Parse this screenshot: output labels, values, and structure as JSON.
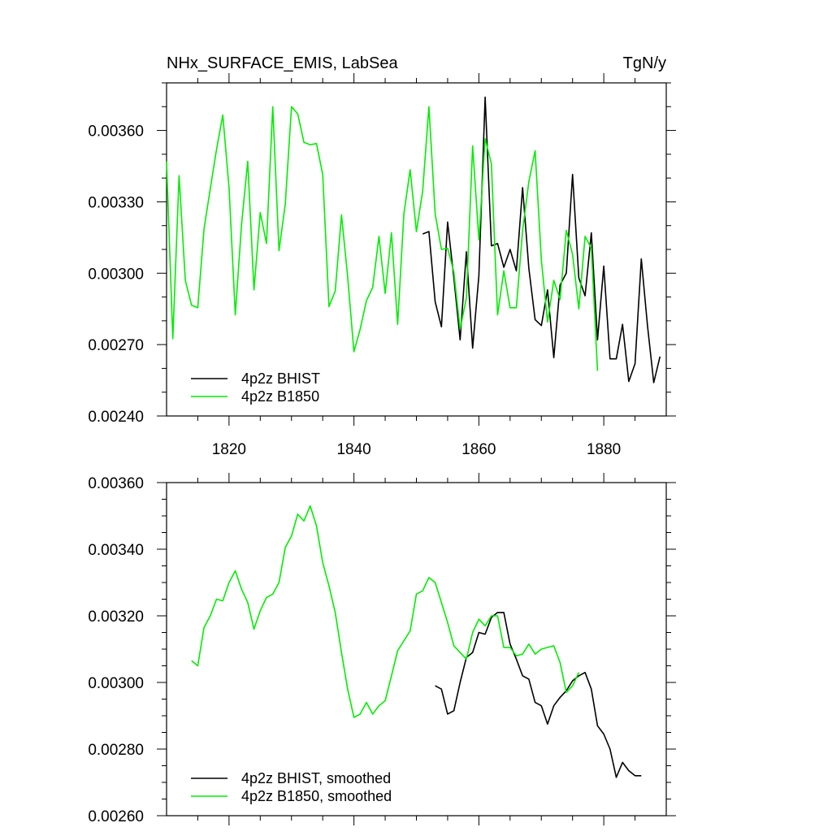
{
  "chart_data": [
    {
      "type": "line",
      "title": "NHx_SURFACE_EMIS, LabSea",
      "units": "TgN/y",
      "xlim": [
        1810,
        1890
      ],
      "ylim": [
        0.0024,
        0.0038
      ],
      "xticks": [
        1820,
        1840,
        1860,
        1880
      ],
      "xtick_labels": [
        "1820",
        "1840",
        "1860",
        "1880"
      ],
      "yticks": [
        0.0024,
        0.0027,
        0.003,
        0.0033,
        0.0036
      ],
      "ytick_labels": [
        "0.00240",
        "0.00270",
        "0.00300",
        "0.00330",
        "0.00360"
      ],
      "legend_position": "bottom-left",
      "series": [
        {
          "name": "4p2z BHIST",
          "color": "#000000",
          "x": [
            1851,
            1852,
            1853,
            1854,
            1855,
            1856,
            1857,
            1858,
            1859,
            1860,
            1861,
            1862,
            1863,
            1864,
            1865,
            1866,
            1867,
            1868,
            1869,
            1870,
            1871,
            1872,
            1873,
            1874,
            1875,
            1876,
            1877,
            1878,
            1879,
            1880,
            1881,
            1882,
            1883,
            1884,
            1885,
            1886,
            1887,
            1888,
            1889
          ],
          "y": [
            0.003165,
            0.003175,
            0.00288,
            0.002775,
            0.003215,
            0.00298,
            0.00272,
            0.00309,
            0.002685,
            0.00299,
            0.00374,
            0.003115,
            0.003125,
            0.003025,
            0.0031,
            0.00301,
            0.00336,
            0.00302,
            0.002805,
            0.00278,
            0.00293,
            0.002645,
            0.00295,
            0.003,
            0.003415,
            0.00298,
            0.002905,
            0.00317,
            0.00272,
            0.00303,
            0.00264,
            0.00264,
            0.002785,
            0.002545,
            0.00262,
            0.00306,
            0.00278,
            0.00254,
            0.00265
          ]
        },
        {
          "name": "4p2z B1850",
          "color": "#00ee00",
          "x": [
            1810,
            1811,
            1812,
            1813,
            1814,
            1815,
            1816,
            1817,
            1818,
            1819,
            1820,
            1821,
            1822,
            1823,
            1824,
            1825,
            1826,
            1827,
            1828,
            1829,
            1830,
            1831,
            1832,
            1833,
            1834,
            1835,
            1836,
            1837,
            1838,
            1839,
            1840,
            1841,
            1842,
            1843,
            1844,
            1845,
            1846,
            1847,
            1848,
            1849,
            1850,
            1851,
            1852,
            1853,
            1854,
            1855,
            1856,
            1857,
            1858,
            1859,
            1860,
            1861,
            1862,
            1863,
            1864,
            1865,
            1866,
            1867,
            1868,
            1869,
            1870,
            1871,
            1872,
            1873,
            1874,
            1875,
            1876,
            1877,
            1878,
            1879
          ],
          "y": [
            0.00347,
            0.002725,
            0.00341,
            0.00297,
            0.002865,
            0.002855,
            0.003185,
            0.003355,
            0.00352,
            0.003665,
            0.00336,
            0.002825,
            0.003205,
            0.00347,
            0.00293,
            0.003255,
            0.003125,
            0.0037,
            0.003095,
            0.00329,
            0.0037,
            0.00367,
            0.00355,
            0.00354,
            0.003545,
            0.003415,
            0.00286,
            0.002925,
            0.003245,
            0.002985,
            0.00267,
            0.002765,
            0.002885,
            0.00294,
            0.003155,
            0.002915,
            0.00317,
            0.002785,
            0.00325,
            0.003435,
            0.003175,
            0.003345,
            0.0037,
            0.00325,
            0.0031,
            0.003105,
            0.003005,
            0.002765,
            0.002895,
            0.003535,
            0.00314,
            0.003565,
            0.00346,
            0.002825,
            0.00301,
            0.002855,
            0.002855,
            0.00318,
            0.003385,
            0.003515,
            0.003055,
            0.002795,
            0.00297,
            0.00289,
            0.00318,
            0.00308,
            0.00285,
            0.003155,
            0.003105,
            0.00259
          ]
        }
      ]
    },
    {
      "type": "line",
      "xlim": [
        1810,
        1890
      ],
      "ylim": [
        0.0026,
        0.0036
      ],
      "xticks": [
        1820,
        1840,
        1860,
        1880
      ],
      "yticks": [
        0.0026,
        0.0028,
        0.003,
        0.0032,
        0.0034,
        0.0036
      ],
      "ytick_labels": [
        "0.00260",
        "0.00280",
        "0.00300",
        "0.00320",
        "0.00340",
        "0.00360"
      ],
      "legend_position": "bottom-left",
      "series": [
        {
          "name": "4p2z BHIST, smoothed",
          "color": "#000000",
          "x": [
            1853,
            1854,
            1855,
            1856,
            1857,
            1858,
            1859,
            1860,
            1861,
            1862,
            1863,
            1864,
            1865,
            1866,
            1867,
            1868,
            1869,
            1870,
            1871,
            1872,
            1873,
            1874,
            1875,
            1876,
            1877,
            1878,
            1879,
            1880,
            1881,
            1882,
            1883,
            1884,
            1885,
            1886
          ],
          "y": [
            0.00299,
            0.00298,
            0.002905,
            0.002915,
            0.003,
            0.003075,
            0.00309,
            0.00315,
            0.003145,
            0.003195,
            0.00321,
            0.00321,
            0.003115,
            0.00307,
            0.00302,
            0.00301,
            0.00294,
            0.00293,
            0.002875,
            0.00293,
            0.002955,
            0.002975,
            0.003005,
            0.00302,
            0.00303,
            0.00298,
            0.00287,
            0.002845,
            0.0028,
            0.002715,
            0.00276,
            0.002735,
            0.00272,
            0.00272
          ]
        },
        {
          "name": "4p2z B1850, smoothed",
          "color": "#00ee00",
          "x": [
            1814,
            1815,
            1816,
            1817,
            1818,
            1819,
            1820,
            1821,
            1822,
            1823,
            1824,
            1825,
            1826,
            1827,
            1828,
            1829,
            1830,
            1831,
            1832,
            1833,
            1834,
            1835,
            1836,
            1837,
            1838,
            1839,
            1840,
            1841,
            1842,
            1843,
            1844,
            1845,
            1846,
            1847,
            1848,
            1849,
            1850,
            1851,
            1852,
            1853,
            1854,
            1855,
            1856,
            1857,
            1858,
            1859,
            1860,
            1861,
            1862,
            1863,
            1864,
            1865,
            1866,
            1867,
            1868,
            1869,
            1870,
            1871,
            1872,
            1873,
            1874,
            1875,
            1876
          ],
          "y": [
            0.003065,
            0.00305,
            0.003165,
            0.0032,
            0.00325,
            0.003245,
            0.0033,
            0.003335,
            0.00328,
            0.00324,
            0.00316,
            0.003215,
            0.003255,
            0.003265,
            0.0033,
            0.003405,
            0.00344,
            0.003505,
            0.003485,
            0.00353,
            0.00347,
            0.00336,
            0.00329,
            0.00321,
            0.00309,
            0.00298,
            0.002895,
            0.002905,
            0.00294,
            0.002905,
            0.00293,
            0.002945,
            0.00302,
            0.003095,
            0.003125,
            0.003155,
            0.003265,
            0.003275,
            0.003315,
            0.0033,
            0.00324,
            0.00318,
            0.00311,
            0.00309,
            0.00307,
            0.00315,
            0.00319,
            0.00317,
            0.0032,
            0.0032,
            0.003105,
            0.003105,
            0.00308,
            0.003085,
            0.003115,
            0.003085,
            0.0031,
            0.003105,
            0.00311,
            0.00306,
            0.00297,
            0.00299,
            0.00303
          ]
        }
      ]
    }
  ]
}
